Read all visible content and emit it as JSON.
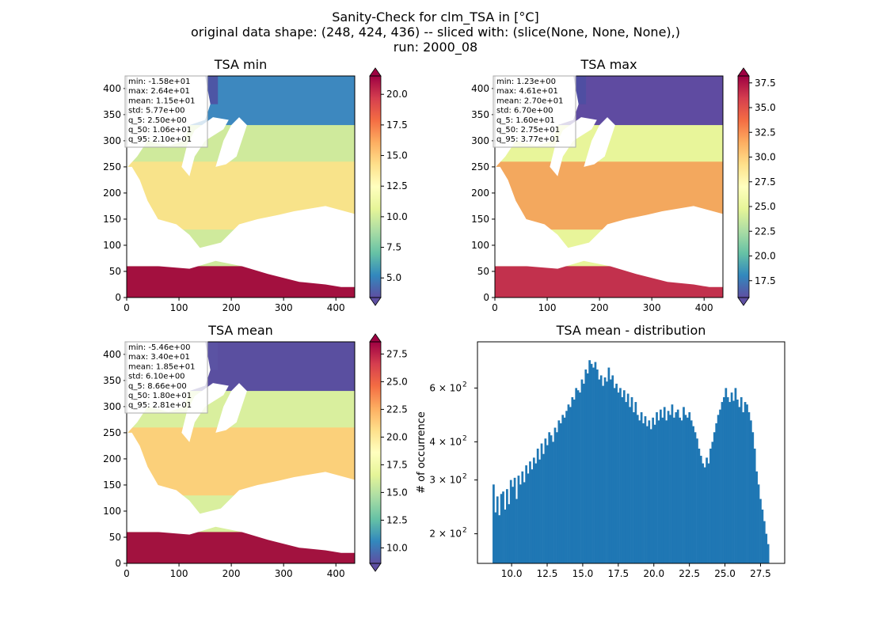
{
  "figure": {
    "title_lines": [
      "Sanity-Check for clm_TSA in [°C]",
      "original data shape: (248, 424, 436) -- sliced with: (slice(None, None, None),)",
      "run: 2000_08"
    ]
  },
  "chart_data": [
    {
      "type": "heatmap",
      "title": "TSA min",
      "xticks": [
        "0",
        "100",
        "200",
        "300",
        "400"
      ],
      "yticks": [
        "0",
        "50",
        "100",
        "150",
        "200",
        "250",
        "300",
        "350",
        "400"
      ],
      "xlim": [
        0,
        436
      ],
      "ylim": [
        0,
        424
      ],
      "colormap": "Spectral_r",
      "colorbar": {
        "range": [
          3.4,
          21.5
        ],
        "ticks": [
          "5.0",
          "7.5",
          "10.0",
          "12.5",
          "15.0",
          "17.5",
          "20.0"
        ],
        "extend": "both"
      },
      "stats": [
        "min: -1.58e+01",
        "max: 2.64e+01",
        "mean: 1.15e+01",
        "std: 5.77e+00",
        "q_5: 2.50e+00",
        "q_50: 1.06e+01",
        "q_95: 2.10e+01"
      ]
    },
    {
      "type": "heatmap",
      "title": "TSA max",
      "xticks": [
        "0",
        "100",
        "200",
        "300",
        "400"
      ],
      "yticks": [
        "0",
        "50",
        "100",
        "150",
        "200",
        "250",
        "300",
        "350",
        "400"
      ],
      "xlim": [
        0,
        436
      ],
      "ylim": [
        0,
        424
      ],
      "colormap": "Spectral_r",
      "colorbar": {
        "range": [
          15.8,
          38.2
        ],
        "ticks": [
          "17.5",
          "20.0",
          "22.5",
          "25.0",
          "27.5",
          "30.0",
          "32.5",
          "35.0",
          "37.5"
        ],
        "extend": "both"
      },
      "stats": [
        "min: 1.23e+00",
        "max: 4.61e+01",
        "mean: 2.70e+01",
        "std: 6.70e+00",
        "q_5: 1.60e+01",
        "q_50: 2.75e+01",
        "q_95: 3.77e+01"
      ]
    },
    {
      "type": "heatmap",
      "title": "TSA mean",
      "xticks": [
        "0",
        "100",
        "200",
        "300",
        "400"
      ],
      "yticks": [
        "0",
        "50",
        "100",
        "150",
        "200",
        "250",
        "300",
        "350",
        "400"
      ],
      "xlim": [
        0,
        436
      ],
      "ylim": [
        0,
        424
      ],
      "colormap": "Spectral_r",
      "colorbar": {
        "range": [
          8.6,
          28.6
        ],
        "ticks": [
          "10.0",
          "12.5",
          "15.0",
          "17.5",
          "20.0",
          "22.5",
          "25.0",
          "27.5"
        ],
        "extend": "both"
      },
      "stats": [
        "min: -5.46e+00",
        "max: 3.40e+01",
        "mean: 1.85e+01",
        "std: 6.10e+00",
        "q_5: 8.66e+00",
        "q_50: 1.80e+01",
        "q_95: 2.81e+01"
      ]
    },
    {
      "type": "bar",
      "title": "TSA mean - distribution",
      "ylabel": "# of occurrence",
      "yscale": "log",
      "xlim": [
        7.6,
        29.2
      ],
      "ylim": [
        160,
        850
      ],
      "xticks": [
        "10.0",
        "12.5",
        "15.0",
        "17.5",
        "20.0",
        "22.5",
        "25.0",
        "27.5"
      ],
      "yticks": [
        {
          "value": 200,
          "base": "2 × 10",
          "exp": "2"
        },
        {
          "value": 300,
          "base": "3 × 10",
          "exp": "2"
        },
        {
          "value": 400,
          "base": "4 × 10",
          "exp": "2"
        },
        {
          "value": 600,
          "base": "6 × 10",
          "exp": "2"
        }
      ],
      "bar_color": "#1f77b4",
      "bin_range": [
        8.66,
        28.1
      ],
      "values": [
        290,
        235,
        265,
        230,
        270,
        275,
        240,
        280,
        250,
        300,
        285,
        305,
        260,
        310,
        290,
        320,
        295,
        335,
        315,
        345,
        325,
        355,
        340,
        380,
        350,
        395,
        365,
        410,
        390,
        430,
        420,
        400,
        445,
        430,
        470,
        460,
        490,
        480,
        505,
        530,
        520,
        560,
        550,
        600,
        590,
        580,
        640,
        620,
        690,
        670,
        740,
        720,
        700,
        730,
        690,
        640,
        660,
        610,
        650,
        630,
        700,
        640,
        660,
        600,
        620,
        580,
        600,
        560,
        590,
        540,
        575,
        520,
        560,
        500,
        540,
        490,
        470,
        500,
        460,
        485,
        450,
        470,
        440,
        480,
        455,
        500,
        470,
        510,
        480,
        520,
        470,
        505,
        490,
        530,
        480,
        500,
        510,
        480,
        470,
        520,
        490,
        480,
        500,
        470,
        450,
        430,
        410,
        380,
        360,
        340,
        330,
        355,
        340,
        380,
        400,
        430,
        460,
        490,
        510,
        540,
        560,
        600,
        560,
        540,
        580,
        545,
        600,
        550,
        520,
        560,
        500,
        540,
        530,
        500,
        470,
        430,
        380,
        320,
        290,
        260,
        240,
        220,
        200,
        185
      ]
    }
  ]
}
